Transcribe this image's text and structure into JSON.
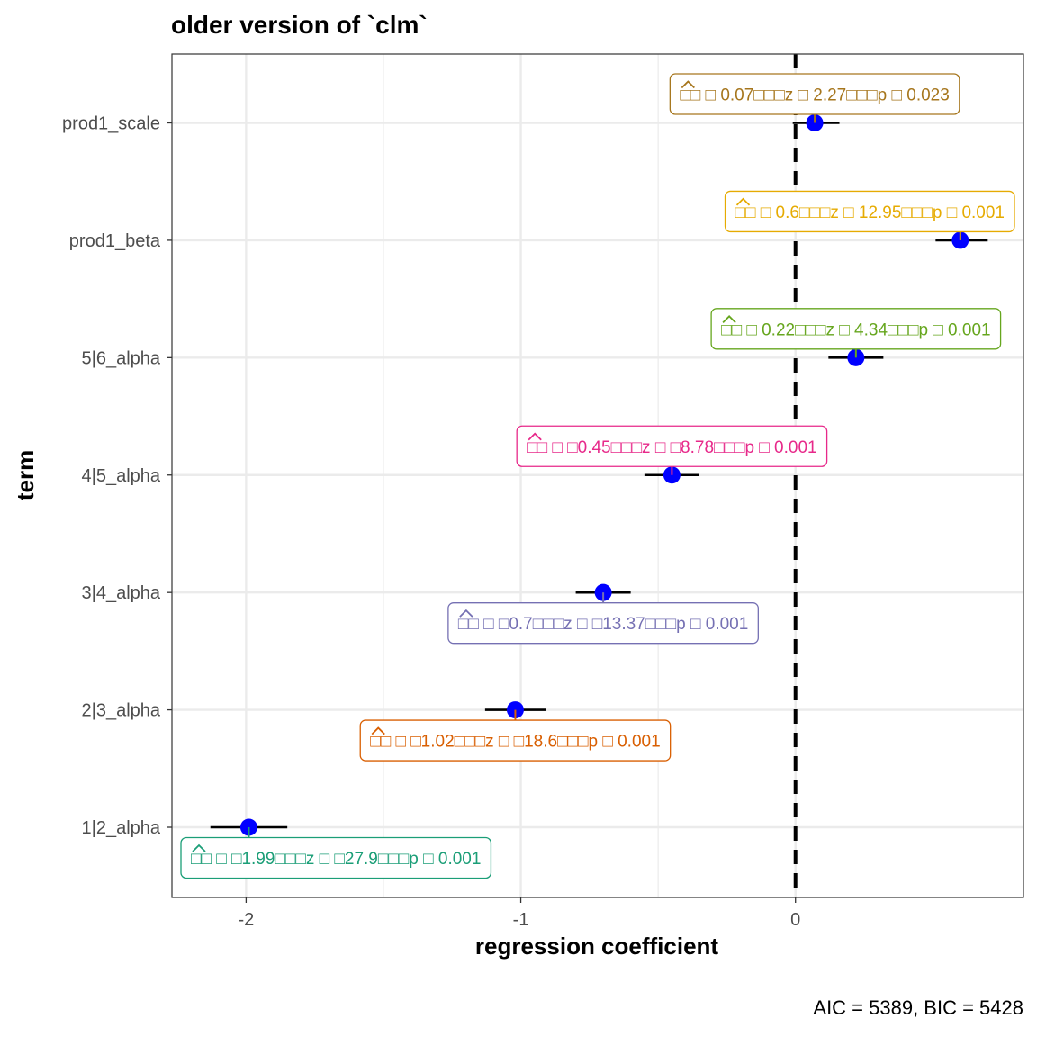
{
  "chart_data": {
    "type": "scatter",
    "title": "older version of `clm`",
    "xlabel": "regression coefficient",
    "ylabel": "term",
    "caption": "AIC = 5389, BIC = 5428",
    "xlim": [
      -2.27,
      0.83
    ],
    "x_ticks": [
      -2,
      -1,
      0
    ],
    "x_tick_labels": [
      "-2",
      "-1",
      "0"
    ],
    "reference_line_x": 0,
    "grid": true,
    "point_color": "#0000ff",
    "terms": [
      "prod1_scale",
      "prod1_beta",
      "5|6_alpha",
      "4|5_alpha",
      "3|4_alpha",
      "2|3_alpha",
      "1|2_alpha"
    ],
    "estimates": [
      0.07,
      0.6,
      0.22,
      -0.45,
      -0.7,
      -1.02,
      -1.99
    ],
    "ci_low": [
      -0.01,
      0.51,
      0.12,
      -0.55,
      -0.8,
      -1.13,
      -2.13
    ],
    "ci_high": [
      0.16,
      0.7,
      0.32,
      -0.35,
      -0.6,
      -0.91,
      -1.85
    ],
    "labels": [
      {
        "text": "ᵦ̂ 𝜷 0.07, 𝑧 = 2.27, 𝑝 = 0.023",
        "color": "#a6761d",
        "position": "above"
      },
      {
        "text": "ᵦ̂ 𝜷 0.6, 𝑧 = 12.95, 𝑝 < 0.001",
        "color": "#e6ab02",
        "position": "above"
      },
      {
        "text": "ᵦ̂ 𝜷 0.22, 𝑧 = 4.34, 𝑝 < 0.001",
        "color": "#66a61e",
        "position": "above"
      },
      {
        "text": "ᵦ̂ 𝜷 −0.45, 𝑧 = −8.78, 𝑝 < 0.001",
        "color": "#e7298a",
        "position": "above"
      },
      {
        "text": "ᵦ̂ 𝜷 −0.7, 𝑧 = −13.37, 𝑝 < 0.001",
        "color": "#7570b3",
        "position": "below"
      },
      {
        "text": "ᵦ̂ 𝜷 −1.02, 𝑧 = −18.6, 𝑝 < 0.001",
        "color": "#d95f02",
        "position": "below"
      },
      {
        "text": "ᵦ̂ 𝜷 −1.99, 𝑧 = −27.9, 𝑝 < 0.001",
        "color": "#1b9e77",
        "position": "below"
      }
    ],
    "label_display": [
      "□□ □ 0.07□□□z □ 2.27□□□p □ 0.023",
      "□□ □ 0.6□□□z □ 12.95□□□p □ 0.001",
      "□□ □ 0.22□□□z □ 4.34□□□p □ 0.001",
      "□□ □ □0.45□□□z □ □8.78□□□p □ 0.001",
      "□□ □ □0.7□□□z □ □13.37□□□p □ 0.001",
      "□□ □ □1.02□□□z □ □18.6□□□p □ 0.001",
      "□□ □ □1.99□□□z □ □27.9□□□p □ 0.001"
    ]
  }
}
